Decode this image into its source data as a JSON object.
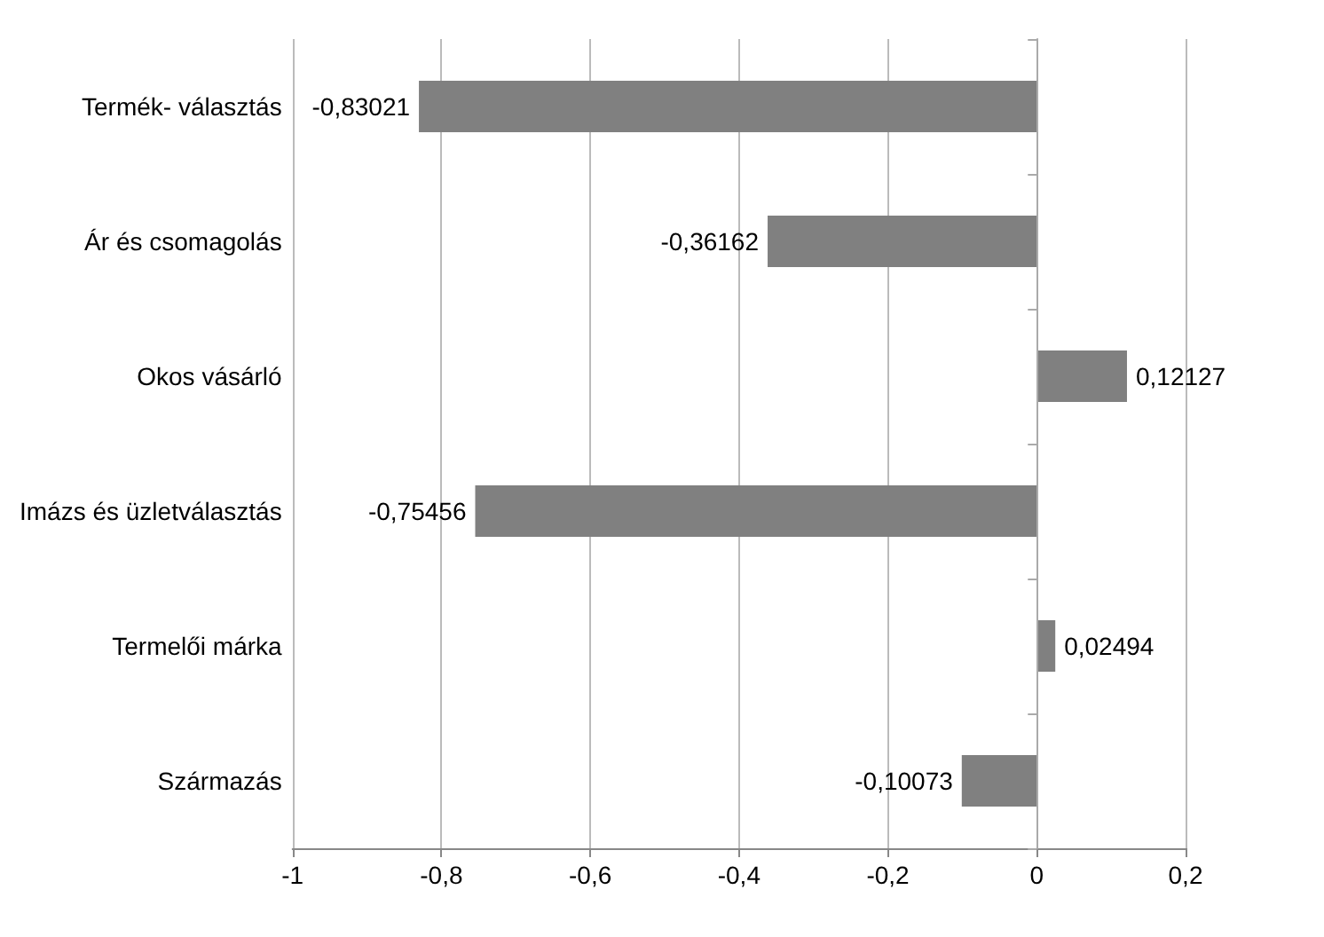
{
  "chart_data": {
    "type": "bar",
    "orientation": "horizontal",
    "categories": [
      "Termék- választás",
      "Ár és csomagolás",
      "Okos vásárló",
      "Imázs és üzletválasztás",
      "Termelői márka",
      "Származás"
    ],
    "values": [
      -0.83021,
      -0.36162,
      0.12127,
      -0.75456,
      0.02494,
      -0.10073
    ],
    "value_labels": [
      "-0,83021",
      "-0,36162",
      "0,12127",
      "-0,75456",
      "0,02494",
      "-0,10073"
    ],
    "color": "#808080",
    "xlim": [
      -1,
      0.2
    ],
    "xticks": [
      {
        "value": -1,
        "label": "-1"
      },
      {
        "value": -0.8,
        "label": "-0,8"
      },
      {
        "value": -0.6,
        "label": "-0,6"
      },
      {
        "value": -0.4,
        "label": "-0,4"
      },
      {
        "value": -0.2,
        "label": "-0,2"
      },
      {
        "value": 0,
        "label": "0"
      },
      {
        "value": 0.2,
        "label": "0,2"
      }
    ],
    "grid": "x"
  }
}
